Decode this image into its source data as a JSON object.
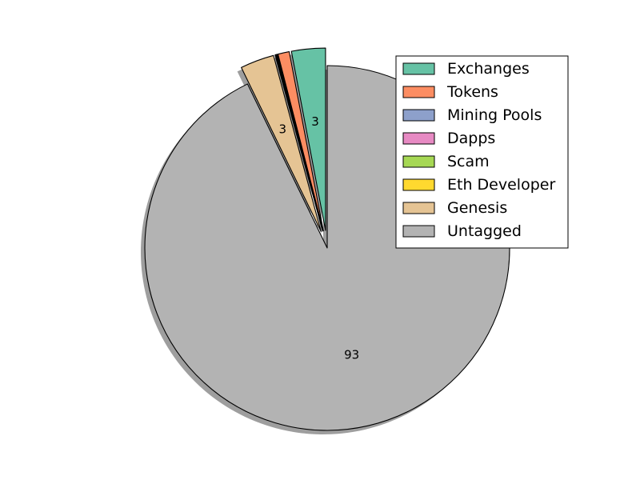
{
  "chart_data": {
    "type": "pie",
    "title": "",
    "start_angle_deg": 90,
    "direction": "counterclockwise",
    "shadow": true,
    "legend_position": "top-right",
    "slices": [
      {
        "name": "Exchanges",
        "value": 3.0,
        "color": "#66c2a5",
        "label": "3",
        "explode": true
      },
      {
        "name": "Tokens",
        "value": 1.0,
        "color": "#fc8d62",
        "label": "",
        "explode": true
      },
      {
        "name": "Mining Pools",
        "value": 0.05,
        "color": "#8da0cb",
        "label": "",
        "explode": true
      },
      {
        "name": "Dapps",
        "value": 0.05,
        "color": "#e78ac3",
        "label": "",
        "explode": true
      },
      {
        "name": "Scam",
        "value": 0.05,
        "color": "#a6d854",
        "label": "",
        "explode": true
      },
      {
        "name": "Eth Developer",
        "value": 0.05,
        "color": "#ffd92f",
        "label": "",
        "explode": true
      },
      {
        "name": "Genesis",
        "value": 3.0,
        "color": "#e5c494",
        "label": "3",
        "explode": true
      },
      {
        "name": "Untagged",
        "value": 92.8,
        "color": "#b3b3b3",
        "label": "93",
        "explode": false
      }
    ]
  }
}
